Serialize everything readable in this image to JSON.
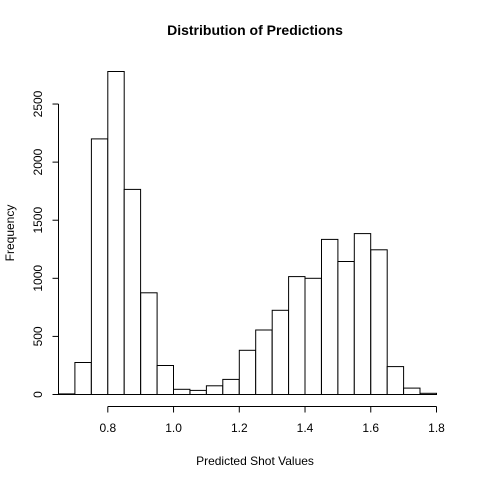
{
  "chart_data": {
    "type": "bar",
    "title": "Distribution of Predictions",
    "xlabel": "Predicted Shot Values",
    "ylabel": "Frequency",
    "xlim": [
      0.65,
      1.8
    ],
    "ylim": [
      0,
      2780
    ],
    "x_ticks": [
      0.8,
      1.0,
      1.2,
      1.4,
      1.6,
      1.8
    ],
    "x_tick_labels": [
      "0.8",
      "1.0",
      "1.2",
      "1.4",
      "1.6",
      "1.8"
    ],
    "y_ticks": [
      0,
      500,
      1000,
      1500,
      2000,
      2500
    ],
    "y_tick_labels": [
      "0",
      "500",
      "1000",
      "1500",
      "2000",
      "2500"
    ],
    "bin_width": 0.05,
    "bins": [
      {
        "x0": 0.65,
        "x1": 0.7,
        "count": 5
      },
      {
        "x0": 0.7,
        "x1": 0.75,
        "count": 275
      },
      {
        "x0": 0.75,
        "x1": 0.8,
        "count": 2200
      },
      {
        "x0": 0.8,
        "x1": 0.85,
        "count": 2780
      },
      {
        "x0": 0.85,
        "x1": 0.9,
        "count": 1765
      },
      {
        "x0": 0.9,
        "x1": 0.95,
        "count": 875
      },
      {
        "x0": 0.95,
        "x1": 1.0,
        "count": 250
      },
      {
        "x0": 1.0,
        "x1": 1.05,
        "count": 45
      },
      {
        "x0": 1.05,
        "x1": 1.1,
        "count": 35
      },
      {
        "x0": 1.1,
        "x1": 1.15,
        "count": 75
      },
      {
        "x0": 1.15,
        "x1": 1.2,
        "count": 130
      },
      {
        "x0": 1.2,
        "x1": 1.25,
        "count": 380
      },
      {
        "x0": 1.25,
        "x1": 1.3,
        "count": 555
      },
      {
        "x0": 1.3,
        "x1": 1.35,
        "count": 725
      },
      {
        "x0": 1.35,
        "x1": 1.4,
        "count": 1015
      },
      {
        "x0": 1.4,
        "x1": 1.45,
        "count": 1000
      },
      {
        "x0": 1.45,
        "x1": 1.5,
        "count": 1335
      },
      {
        "x0": 1.5,
        "x1": 1.55,
        "count": 1145
      },
      {
        "x0": 1.55,
        "x1": 1.6,
        "count": 1385
      },
      {
        "x0": 1.6,
        "x1": 1.65,
        "count": 1245
      },
      {
        "x0": 1.65,
        "x1": 1.7,
        "count": 240
      },
      {
        "x0": 1.7,
        "x1": 1.75,
        "count": 55
      },
      {
        "x0": 1.75,
        "x1": 1.8,
        "count": 10
      }
    ]
  }
}
